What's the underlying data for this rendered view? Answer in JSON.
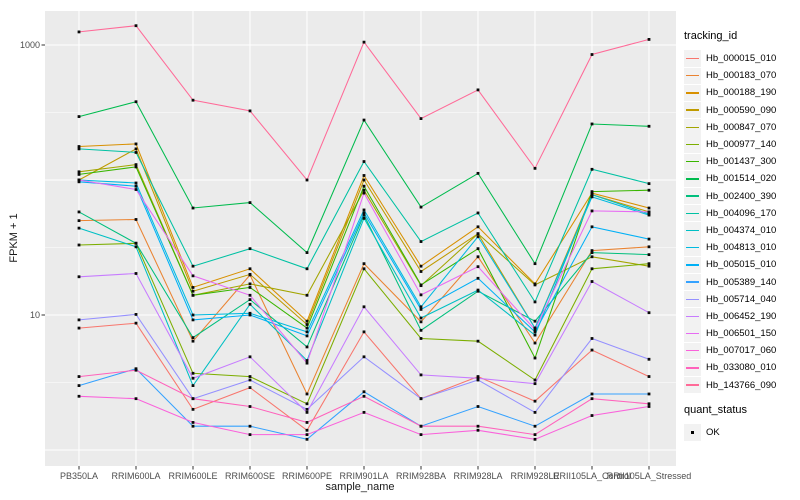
{
  "y_axis": {
    "title": "FPKM + 1",
    "tick_labels": {
      "t1000": "1000",
      "t10": "10"
    }
  },
  "x_axis": {
    "title": "sample_name"
  },
  "legend": {
    "tracking_title": "tracking_id",
    "quant_title": "quant_status",
    "quant_ok_label": "OK"
  },
  "chart_data": {
    "type": "line",
    "title": "",
    "xlabel": "sample_name",
    "ylabel": "FPKM + 1",
    "y_scale": "log10",
    "ylim": [
      0.8,
      1800
    ],
    "y_labeled_breaks": [
      10,
      1000
    ],
    "y_gridlines": [
      1,
      10,
      100,
      1000
    ],
    "grid": true,
    "legend_position": "right",
    "panel_background": "#EBEBEB",
    "gridline_color": "#FFFFFF",
    "marker": "small black square (quant_status = OK)",
    "categories": [
      "PB350LA",
      "RRIM600LA",
      "RRIM600LE",
      "RRIM600SE",
      "RRIM600PE",
      "RRIM901LA",
      "RRIM928BA",
      "RRIM928LA",
      "RRIM928LE",
      "RRII105LA_Control",
      "RRII105LA_Stressed"
    ],
    "series": [
      {
        "name": "Hb_000015_010",
        "color": "#F8766D",
        "values": [
          8,
          8.7,
          2,
          2.9,
          1.4,
          7.5,
          2.4,
          3.5,
          2.3,
          5.5,
          3.5
        ]
      },
      {
        "name": "Hb_000183_070",
        "color": "#EA8331",
        "values": [
          50,
          51,
          6.4,
          19.8,
          2.6,
          24,
          8.9,
          27,
          6.2,
          30,
          32
        ]
      },
      {
        "name": "Hb_000188_190",
        "color": "#D89000",
        "values": [
          177,
          185,
          16,
          22,
          9,
          108,
          23,
          45,
          17,
          80,
          62
        ]
      },
      {
        "name": "Hb_000590_090",
        "color": "#C09B00",
        "values": [
          100,
          170,
          15,
          20,
          8.5,
          100,
          21,
          40,
          8,
          78,
          58
        ]
      },
      {
        "name": "Hb_000847_070",
        "color": "#A3A500",
        "values": [
          115,
          130,
          14,
          17,
          14,
          84,
          16.5,
          40,
          16.7,
          27,
          23
        ]
      },
      {
        "name": "Hb_000977_140",
        "color": "#7CAE00",
        "values": [
          33,
          34,
          3.7,
          3.5,
          2.2,
          22,
          6.7,
          6.4,
          3.3,
          22,
          24
        ]
      },
      {
        "name": "Hb_001437_300",
        "color": "#39B600",
        "values": [
          110,
          125,
          14,
          16,
          8,
          90,
          16.7,
          31,
          4.8,
          82,
          84
        ]
      },
      {
        "name": "Hb_001514_020",
        "color": "#00BB4E",
        "values": [
          295,
          380,
          62,
          68,
          29,
          278,
          63,
          112,
          24,
          260,
          250
        ]
      },
      {
        "name": "Hb_002400_390",
        "color": "#00BF7D",
        "values": [
          58,
          34,
          6.8,
          13,
          5.8,
          55,
          7.7,
          15,
          9,
          29,
          28
        ]
      },
      {
        "name": "Hb_004096_170",
        "color": "#00C1A3",
        "values": [
          170,
          160,
          23,
          31,
          22,
          137,
          35,
          57,
          12.5,
          120,
          94
        ]
      },
      {
        "name": "Hb_004374_010",
        "color": "#00BFC4",
        "values": [
          44,
          32,
          3,
          12,
          4.6,
          52,
          9.5,
          15.3,
          7.1,
          78,
          56
        ]
      },
      {
        "name": "Hb_004813_010",
        "color": "#00BAE0",
        "values": [
          100,
          95,
          10,
          10.3,
          7.5,
          60,
          11.5,
          38,
          8,
          75,
          55
        ]
      },
      {
        "name": "Hb_005015_010",
        "color": "#00B0F6",
        "values": [
          97,
          90,
          9.2,
          10,
          7,
          57,
          11,
          18.7,
          7.5,
          45,
          36.5
        ]
      },
      {
        "name": "Hb_005389_140",
        "color": "#35A2FF",
        "values": [
          3,
          4,
          1.5,
          1.5,
          1.2,
          2.7,
          1.5,
          2.1,
          1.5,
          2.6,
          2.6
        ]
      },
      {
        "name": "Hb_005714_040",
        "color": "#9590FF",
        "values": [
          9.2,
          10.1,
          2.4,
          3.3,
          2,
          4.9,
          2.4,
          3.3,
          1.9,
          6.7,
          4.7
        ]
      },
      {
        "name": "Hb_006452_190",
        "color": "#C77CFF",
        "values": [
          19.2,
          20.3,
          3.4,
          4.9,
          1.9,
          11.5,
          3.6,
          3.4,
          3.1,
          17.7,
          10.4
        ]
      },
      {
        "name": "Hb_006501_150",
        "color": "#E76BF3",
        "values": [
          100,
          85,
          19.5,
          14,
          4.4,
          80,
          14.1,
          22.8,
          7.8,
          59,
          58
        ]
      },
      {
        "name": "Hb_007017_060",
        "color": "#FA62DB",
        "values": [
          2.5,
          2.4,
          1.6,
          1.3,
          1.3,
          1.9,
          1.3,
          1.4,
          1.2,
          1.8,
          2.1
        ]
      },
      {
        "name": "Hb_033080_010",
        "color": "#FF62BC",
        "values": [
          3.5,
          3.9,
          2.4,
          2.1,
          1.6,
          2.5,
          1.5,
          1.5,
          1.3,
          2.4,
          2.2
        ]
      },
      {
        "name": "Hb_143766_090",
        "color": "#FF6A98",
        "values": [
          1250,
          1390,
          390,
          325,
          100,
          1050,
          285,
          465,
          122,
          850,
          1100
        ]
      }
    ]
  }
}
